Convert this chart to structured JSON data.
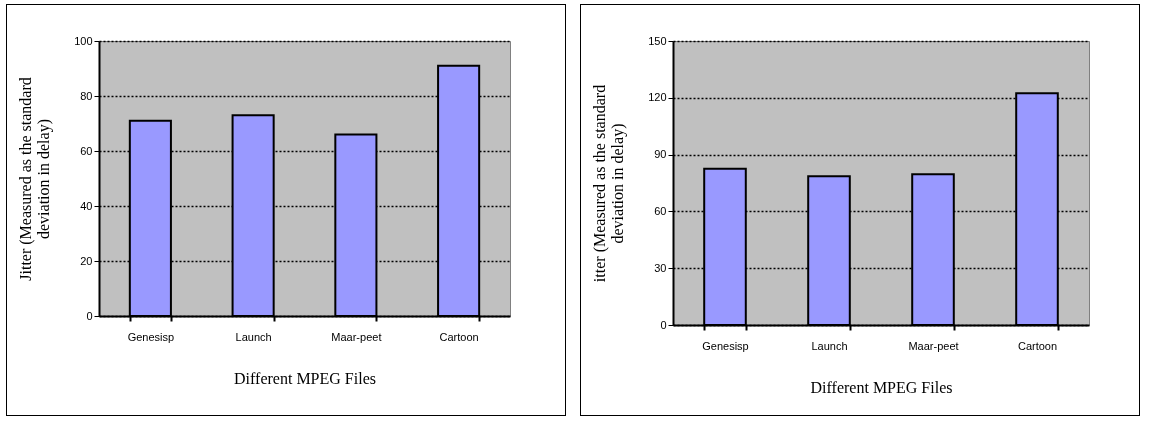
{
  "chart_data": [
    {
      "type": "bar",
      "categories": [
        "Genesisp",
        "Launch",
        "Maar-peet",
        "Cartoon"
      ],
      "values": [
        71,
        73,
        66,
        91
      ],
      "color": "#9999ff",
      "xlabel": "Different MPEG Files",
      "ylabel": "Jitter (Measured as the standard\ndeviation in delay)",
      "ylim": [
        0,
        100
      ],
      "yticks": [
        0,
        20,
        40,
        60,
        80,
        100
      ],
      "grid": "y"
    },
    {
      "type": "bar",
      "categories": [
        "Genesisp",
        "Launch",
        "Maar-peet",
        "Cartoon"
      ],
      "values": [
        82.5,
        78.5,
        79.6,
        122.4
      ],
      "color": "#9999ff",
      "xlabel": "Different MPEG Files",
      "ylabel": "itter (Measured as the standard\ndeviation in delay)",
      "ylim": [
        0,
        150
      ],
      "yticks": [
        0,
        30,
        60,
        90,
        120,
        150
      ],
      "grid": "y"
    }
  ]
}
